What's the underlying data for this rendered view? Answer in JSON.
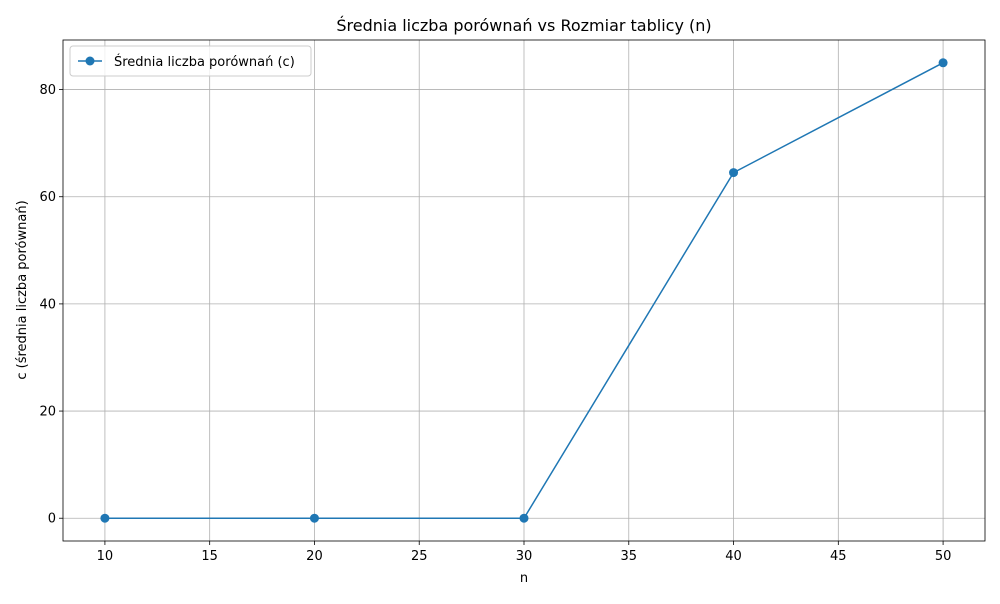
{
  "chart_data": {
    "type": "line",
    "title": "Średnia liczba porównań vs Rozmiar tablicy (n)",
    "xlabel": "n",
    "ylabel": "c (średnia liczba porównań)",
    "xlim": [
      8,
      52
    ],
    "ylim": [
      -4.25,
      89.25
    ],
    "x_ticks": [
      10,
      15,
      20,
      25,
      30,
      35,
      40,
      45,
      50
    ],
    "y_ticks": [
      0,
      20,
      40,
      60,
      80
    ],
    "grid": true,
    "legend_position": "top-left",
    "series": [
      {
        "name": "Średnia liczba porównań (c)",
        "color": "#1f77b4",
        "marker": "circle",
        "x": [
          10,
          20,
          30,
          40,
          50
        ],
        "y": [
          0,
          0,
          0,
          64.5,
          85
        ]
      }
    ]
  }
}
